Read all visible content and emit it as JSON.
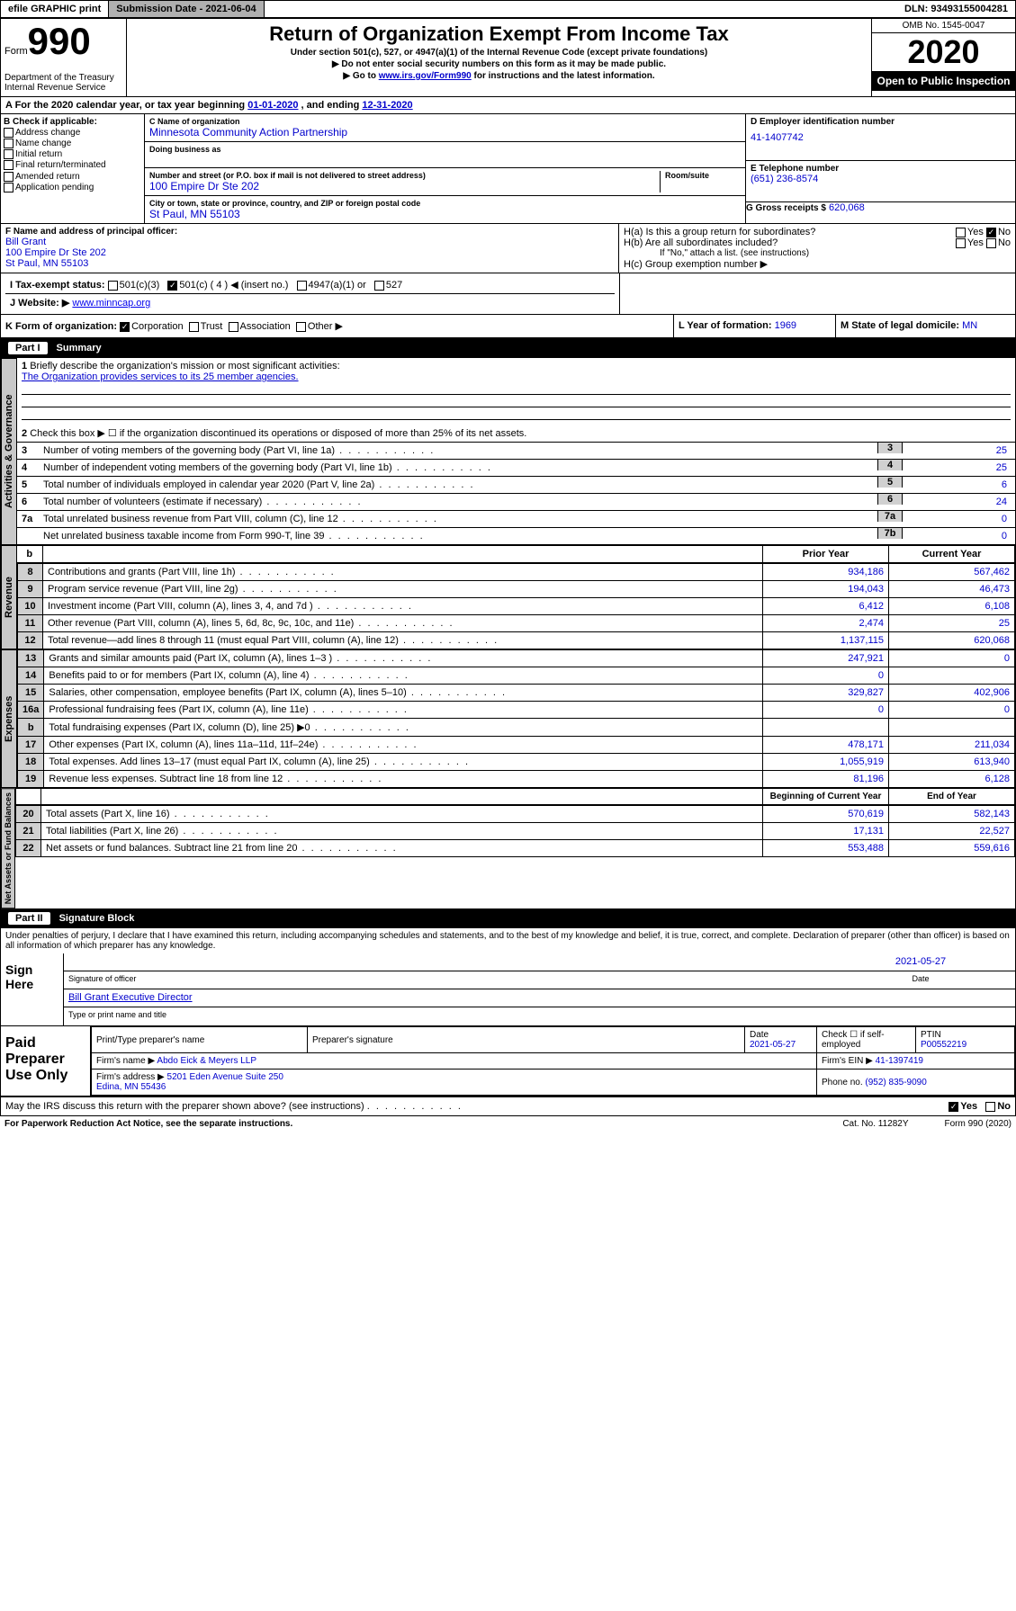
{
  "topbar": {
    "efile": "efile GRAPHIC print",
    "submission": "Submission Date - 2021-06-04",
    "dln": "DLN: 93493155004281"
  },
  "header": {
    "form_word": "Form",
    "form_num": "990",
    "dept": "Department of the Treasury\nInternal Revenue Service",
    "title": "Return of Organization Exempt From Income Tax",
    "sub1": "Under section 501(c), 527, or 4947(a)(1) of the Internal Revenue Code (except private foundations)",
    "sub2": "▶ Do not enter social security numbers on this form as it may be made public.",
    "sub3_pre": "▶ Go to ",
    "sub3_link": "www.irs.gov/Form990",
    "sub3_post": " for instructions and the latest information.",
    "omb": "OMB No. 1545-0047",
    "year": "2020",
    "open": "Open to Public Inspection"
  },
  "period": {
    "label": "A For the 2020 calendar year, or tax year beginning ",
    "begin": "01-01-2020",
    "mid": " , and ending ",
    "end": "12-31-2020"
  },
  "boxB": {
    "title": "B Check if applicable:",
    "items": [
      "Address change",
      "Name change",
      "Initial return",
      "Final return/terminated",
      "Amended return",
      "Application pending"
    ]
  },
  "boxC": {
    "name_lbl": "C Name of organization",
    "name": "Minnesota Community Action Partnership",
    "dba_lbl": "Doing business as",
    "addr_lbl": "Number and street (or P.O. box if mail is not delivered to street address)",
    "room_lbl": "Room/suite",
    "addr": "100 Empire Dr Ste 202",
    "city_lbl": "City or town, state or province, country, and ZIP or foreign postal code",
    "city": "St Paul, MN  55103"
  },
  "boxD": {
    "lbl": "D Employer identification number",
    "val": "41-1407742"
  },
  "boxE": {
    "lbl": "E Telephone number",
    "val": "(651) 236-8574"
  },
  "boxG": {
    "lbl": "G Gross receipts $",
    "val": "620,068"
  },
  "boxF": {
    "lbl": "F Name and address of principal officer:",
    "name": "Bill Grant",
    "addr": "100 Empire Dr Ste 202\nSt Paul, MN  55103"
  },
  "boxH": {
    "a_lbl": "H(a)  Is this a group return for subordinates?",
    "a_no": "No",
    "a_yes": "Yes",
    "b_lbl": "H(b)  Are all subordinates included?",
    "note": "If \"No,\" attach a list. (see instructions)",
    "c_lbl": "H(c)  Group exemption number ▶"
  },
  "taxstatus": {
    "lbl": "I  Tax-exempt status:",
    "c3": "501(c)(3)",
    "c": "501(c) ( 4 ) ◀ (insert no.)",
    "a": "4947(a)(1) or",
    "d": "527"
  },
  "website": {
    "lbl": "J  Website: ▶",
    "val": "www.minncap.org"
  },
  "boxK": {
    "lbl": "K Form of organization:",
    "opts": [
      "Corporation",
      "Trust",
      "Association",
      "Other ▶"
    ]
  },
  "boxL": {
    "lbl": "L Year of formation:",
    "val": "1969"
  },
  "boxM": {
    "lbl": "M State of legal domicile:",
    "val": "MN"
  },
  "part1": {
    "num": "Part I",
    "title": "Summary"
  },
  "summary": {
    "q1": "Briefly describe the organization's mission or most significant activities:",
    "mission": "The Organization provides services to its 25 member agencies.",
    "q2": "Check this box ▶ ☐ if the organization discontinued its operations or disposed of more than 25% of its net assets.",
    "lines": [
      {
        "n": "3",
        "t": "Number of voting members of the governing body (Part VI, line 1a)",
        "b": "3",
        "v": "25"
      },
      {
        "n": "4",
        "t": "Number of independent voting members of the governing body (Part VI, line 1b)",
        "b": "4",
        "v": "25"
      },
      {
        "n": "5",
        "t": "Total number of individuals employed in calendar year 2020 (Part V, line 2a)",
        "b": "5",
        "v": "6"
      },
      {
        "n": "6",
        "t": "Total number of volunteers (estimate if necessary)",
        "b": "6",
        "v": "24"
      },
      {
        "n": "7a",
        "t": "Total unrelated business revenue from Part VIII, column (C), line 12",
        "b": "7a",
        "v": "0"
      },
      {
        "n": "",
        "t": "Net unrelated business taxable income from Form 990-T, line 39",
        "b": "7b",
        "v": "0"
      }
    ],
    "hdr_prior": "Prior Year",
    "hdr_curr": "Current Year",
    "revenue": [
      {
        "n": "8",
        "t": "Contributions and grants (Part VIII, line 1h)",
        "p": "934,186",
        "c": "567,462"
      },
      {
        "n": "9",
        "t": "Program service revenue (Part VIII, line 2g)",
        "p": "194,043",
        "c": "46,473"
      },
      {
        "n": "10",
        "t": "Investment income (Part VIII, column (A), lines 3, 4, and 7d )",
        "p": "6,412",
        "c": "6,108"
      },
      {
        "n": "11",
        "t": "Other revenue (Part VIII, column (A), lines 5, 6d, 8c, 9c, 10c, and 11e)",
        "p": "2,474",
        "c": "25"
      },
      {
        "n": "12",
        "t": "Total revenue—add lines 8 through 11 (must equal Part VIII, column (A), line 12)",
        "p": "1,137,115",
        "c": "620,068"
      }
    ],
    "expenses": [
      {
        "n": "13",
        "t": "Grants and similar amounts paid (Part IX, column (A), lines 1–3 )",
        "p": "247,921",
        "c": "0"
      },
      {
        "n": "14",
        "t": "Benefits paid to or for members (Part IX, column (A), line 4)",
        "p": "0",
        "c": ""
      },
      {
        "n": "15",
        "t": "Salaries, other compensation, employee benefits (Part IX, column (A), lines 5–10)",
        "p": "329,827",
        "c": "402,906"
      },
      {
        "n": "16a",
        "t": "Professional fundraising fees (Part IX, column (A), line 11e)",
        "p": "0",
        "c": "0"
      },
      {
        "n": "b",
        "t": "Total fundraising expenses (Part IX, column (D), line 25) ▶0",
        "p": "",
        "c": ""
      },
      {
        "n": "17",
        "t": "Other expenses (Part IX, column (A), lines 11a–11d, 11f–24e)",
        "p": "478,171",
        "c": "211,034"
      },
      {
        "n": "18",
        "t": "Total expenses. Add lines 13–17 (must equal Part IX, column (A), line 25)",
        "p": "1,055,919",
        "c": "613,940"
      },
      {
        "n": "19",
        "t": "Revenue less expenses. Subtract line 18 from line 12",
        "p": "81,196",
        "c": "6,128"
      }
    ],
    "hdr_begin": "Beginning of Current Year",
    "hdr_end": "End of Year",
    "netassets": [
      {
        "n": "20",
        "t": "Total assets (Part X, line 16)",
        "p": "570,619",
        "c": "582,143"
      },
      {
        "n": "21",
        "t": "Total liabilities (Part X, line 26)",
        "p": "17,131",
        "c": "22,527"
      },
      {
        "n": "22",
        "t": "Net assets or fund balances. Subtract line 21 from line 20",
        "p": "553,488",
        "c": "559,616"
      }
    ]
  },
  "part2": {
    "num": "Part II",
    "title": "Signature Block"
  },
  "penalty": "Under penalties of perjury, I declare that I have examined this return, including accompanying schedules and statements, and to the best of my knowledge and belief, it is true, correct, and complete. Declaration of preparer (other than officer) is based on all information of which preparer has any knowledge.",
  "sign": {
    "here": "Sign Here",
    "date": "2021-05-27",
    "sig_lbl": "Signature of officer",
    "date_lbl": "Date",
    "name": "Bill Grant Executive Director",
    "name_lbl": "Type or print name and title"
  },
  "paid": {
    "title": "Paid Preparer Use Only",
    "h1": "Print/Type preparer's name",
    "h2": "Preparer's signature",
    "h3": "Date",
    "h4": "Check ☐ if self-employed",
    "h5": "PTIN",
    "date": "2021-05-27",
    "ptin": "P00552219",
    "firm_lbl": "Firm's name   ▶",
    "firm": "Abdo Eick & Meyers LLP",
    "ein_lbl": "Firm's EIN ▶",
    "ein": "41-1397419",
    "addr_lbl": "Firm's address ▶",
    "addr": "5201 Eden Avenue Suite 250\nEdina, MN  55436",
    "phone_lbl": "Phone no.",
    "phone": "(952) 835-9090"
  },
  "discuss": {
    "q": "May the IRS discuss this return with the preparer shown above? (see instructions)",
    "yes": "Yes",
    "no": "No"
  },
  "footer": {
    "l": "For Paperwork Reduction Act Notice, see the separate instructions.",
    "c": "Cat. No. 11282Y",
    "r": "Form 990 (2020)"
  },
  "vlabels": {
    "ag": "Activities & Governance",
    "rev": "Revenue",
    "exp": "Expenses",
    "na": "Net Assets or Fund Balances"
  }
}
